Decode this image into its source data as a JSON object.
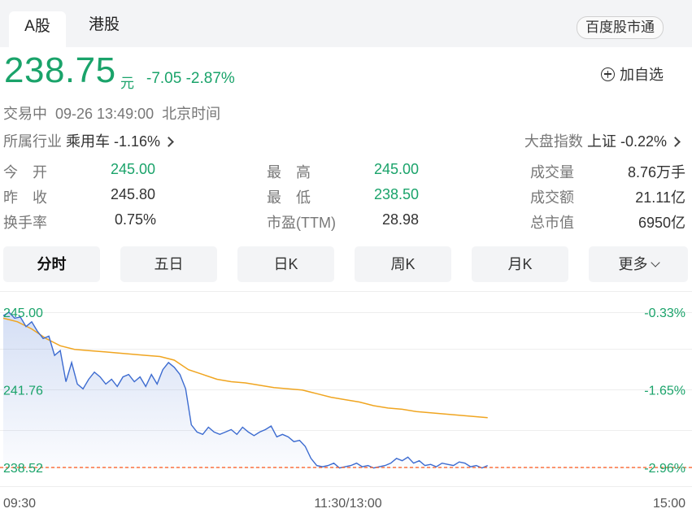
{
  "tabs": {
    "a_share": "A股",
    "hk_share": "港股"
  },
  "baidu_button": "百度股市通",
  "quote": {
    "price": "238.75",
    "unit": "元",
    "change": "-7.05",
    "change_pct": "-2.87%",
    "add_favorite": "加自选"
  },
  "status": {
    "state": "交易中",
    "datetime": "09-26 13:49:00",
    "timezone": "北京时间"
  },
  "industry": {
    "label": "所属行业",
    "name": "乘用车",
    "pct": "-1.16%"
  },
  "market_index": {
    "label": "大盘指数",
    "name": "上证",
    "pct": "-0.22%"
  },
  "stats": {
    "open_label": "今　开",
    "open": "245.00",
    "high_label": "最　高",
    "high": "245.00",
    "volume_label": "成交量",
    "volume": "8.76万手",
    "prev_close_label": "昨　收",
    "prev_close": "245.80",
    "low_label": "最　低",
    "low": "238.50",
    "turnover_label": "成交额",
    "turnover": "21.11亿",
    "turnover_rate_label": "换手率",
    "turnover_rate": "0.75%",
    "pe_label": "市盈(TTM)",
    "pe": "28.98",
    "mcap_label": "总市值",
    "mcap": "6950亿"
  },
  "periods": [
    "分时",
    "五日",
    "日K",
    "周K",
    "月K",
    "更多"
  ],
  "colors": {
    "green": "#1aa36a",
    "price_line": "#3c6bd0",
    "avg_line": "#f0a520",
    "ref_line": "#ff5a1f"
  },
  "chart_data": {
    "type": "line",
    "y_left_labels": [
      "245.00",
      "241.76",
      "238.52"
    ],
    "y_right_labels": [
      "-0.33%",
      "-1.65%",
      "-2.96%"
    ],
    "x_labels": [
      "09:30",
      "11:30/13:00",
      "15:00"
    ],
    "ylim": [
      238.52,
      245.0
    ],
    "x_total_minutes": 240,
    "series": [
      {
        "x": [
          0,
          2,
          4,
          6,
          8,
          10,
          12,
          14,
          16,
          18,
          20,
          22,
          24,
          26,
          28,
          30,
          32,
          34,
          36,
          38,
          40,
          42,
          44,
          46,
          48,
          50,
          52,
          54,
          56,
          58,
          60,
          62,
          64,
          66,
          68,
          70,
          72,
          74,
          76,
          78,
          80,
          82,
          84,
          86,
          88,
          90,
          92,
          94,
          96,
          98,
          100,
          102,
          104,
          106,
          108,
          110,
          112,
          114,
          116,
          118,
          120,
          122,
          124,
          126,
          128,
          130,
          132,
          134,
          136,
          138,
          140,
          142,
          144,
          146,
          148,
          150,
          152,
          154,
          156,
          158,
          160,
          162,
          164,
          166,
          168,
          170
        ],
        "y": [
          244.85,
          245.0,
          244.75,
          244.8,
          244.4,
          244.6,
          244.2,
          243.9,
          244.0,
          243.2,
          243.4,
          242.1,
          242.9,
          242.0,
          241.8,
          242.2,
          242.5,
          242.3,
          242.0,
          242.2,
          241.9,
          242.3,
          242.4,
          242.1,
          242.3,
          241.9,
          242.4,
          242.0,
          242.6,
          242.9,
          242.7,
          242.4,
          241.8,
          240.3,
          240.0,
          239.9,
          240.2,
          240.0,
          239.9,
          240.0,
          240.1,
          239.9,
          240.2,
          240.0,
          239.85,
          240.0,
          240.1,
          240.25,
          239.8,
          239.9,
          239.8,
          239.6,
          239.65,
          239.4,
          238.9,
          238.6,
          238.55,
          238.6,
          238.7,
          238.5,
          238.55,
          238.6,
          238.7,
          238.55,
          238.6,
          238.5,
          238.55,
          238.6,
          238.7,
          238.9,
          238.8,
          238.95,
          238.7,
          238.8,
          238.6,
          238.65,
          238.55,
          238.7,
          238.65,
          238.6,
          238.75,
          238.7,
          238.55,
          238.6,
          238.5,
          238.6
        ]
      },
      {
        "x": [
          0,
          5,
          10,
          15,
          20,
          25,
          30,
          35,
          40,
          45,
          50,
          55,
          60,
          65,
          70,
          75,
          80,
          85,
          90,
          95,
          100,
          105,
          110,
          115,
          120,
          125,
          130,
          135,
          140,
          145,
          150,
          155,
          160,
          165,
          170
        ],
        "y": [
          244.75,
          244.6,
          244.3,
          243.9,
          243.6,
          243.45,
          243.4,
          243.35,
          243.3,
          243.25,
          243.2,
          243.15,
          243.0,
          242.6,
          242.4,
          242.2,
          242.1,
          242.05,
          241.95,
          241.85,
          241.8,
          241.75,
          241.6,
          241.45,
          241.35,
          241.25,
          241.1,
          241.0,
          240.95,
          240.85,
          240.8,
          240.75,
          240.7,
          240.65,
          240.6
        ]
      }
    ],
    "reference": 238.52
  }
}
